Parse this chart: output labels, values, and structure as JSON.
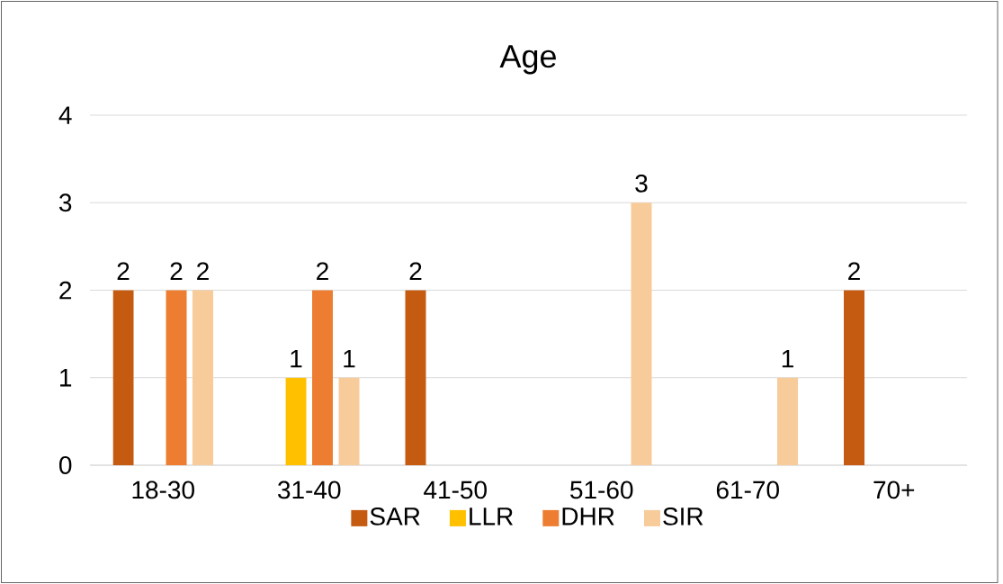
{
  "chart_data": {
    "type": "bar",
    "title": "Age",
    "categories": [
      "18-30",
      "31-40",
      "41-50",
      "51-60",
      "61-70",
      "70+"
    ],
    "series": [
      {
        "name": "SAR",
        "color": "#c55a11",
        "values": [
          2,
          null,
          2,
          null,
          null,
          2
        ]
      },
      {
        "name": "LLR",
        "color": "#ffc000",
        "values": [
          null,
          1,
          null,
          null,
          null,
          null
        ]
      },
      {
        "name": "DHR",
        "color": "#ed7d31",
        "values": [
          2,
          2,
          null,
          null,
          null,
          null
        ]
      },
      {
        "name": "SIR",
        "color": "#f8cb9b",
        "values": [
          2,
          1,
          null,
          3,
          1,
          null
        ]
      }
    ],
    "ylim": [
      0,
      4
    ],
    "yticks": [
      0,
      1,
      2,
      3,
      4
    ],
    "grid": "y",
    "legend": "bottom",
    "data_labels": true
  }
}
